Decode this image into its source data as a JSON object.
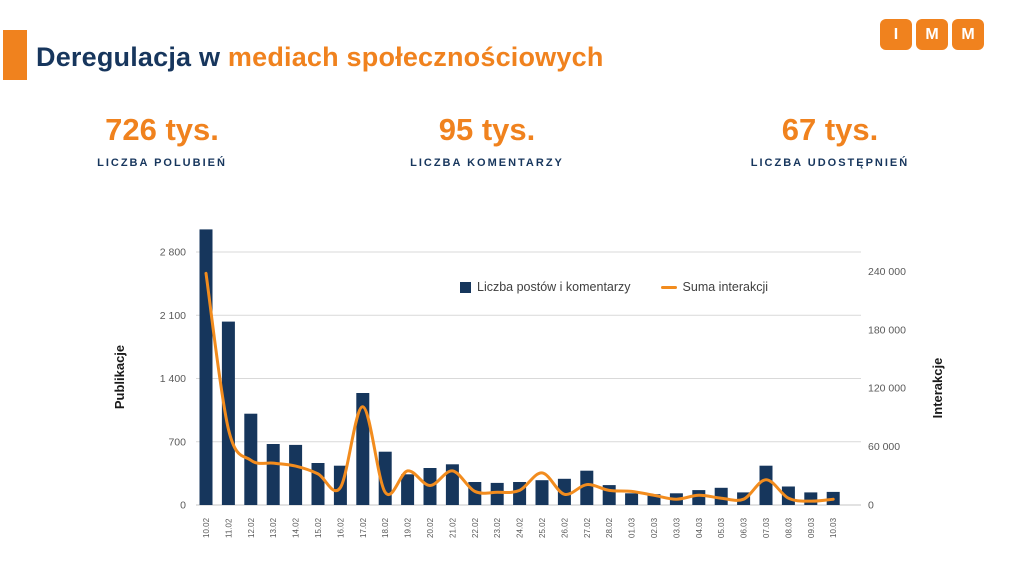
{
  "header": {
    "title_dark": "Deregulacja w ",
    "title_orange": "mediach społecznościowych",
    "logo_letters": [
      "I",
      "M",
      "M"
    ]
  },
  "stats": [
    {
      "value": "726 tys.",
      "label": "LICZBA POLUBIEŃ"
    },
    {
      "value": "95 tys.",
      "label": "LICZBA KOMENTARZY"
    },
    {
      "value": "67 tys.",
      "label": "LICZBA UDOSTĘPNIEŃ"
    }
  ],
  "colors": {
    "navy": "#17365d",
    "orange": "#f0821e",
    "bar": "#16365c",
    "line": "#f28c1e",
    "axis_text": "#595959",
    "grid": "#d9d9d9"
  },
  "chart_data": {
    "type": "bar",
    "categories": [
      "10.02",
      "11.02",
      "12.02",
      "13.02",
      "14.02",
      "15.02",
      "16.02",
      "17.02",
      "18.02",
      "19.02",
      "20.02",
      "21.02",
      "22.02",
      "23.02",
      "24.02",
      "25.02",
      "26.02",
      "27.02",
      "28.02",
      "01.03",
      "02.03",
      "03.03",
      "04.03",
      "05.03",
      "06.03",
      "07.03",
      "08.03",
      "09.03",
      "10.03"
    ],
    "series": [
      {
        "name": "Liczba postów i komentarzy",
        "type": "bar",
        "axis": "left",
        "color": "#16365c",
        "values": [
          3050,
          2030,
          1010,
          675,
          665,
          465,
          435,
          1240,
          590,
          340,
          410,
          450,
          255,
          245,
          255,
          275,
          290,
          380,
          220,
          130,
          120,
          130,
          165,
          190,
          140,
          435,
          205,
          140,
          145
        ]
      },
      {
        "name": "Suma interakcji",
        "type": "line",
        "axis": "right",
        "color": "#f28c1e",
        "values": [
          238000,
          78000,
          46000,
          43000,
          40000,
          32000,
          18000,
          101000,
          13000,
          35000,
          20000,
          35000,
          14000,
          13000,
          15000,
          33000,
          11000,
          21000,
          15000,
          14000,
          10000,
          6000,
          10000,
          7000,
          6000,
          26000,
          7000,
          4000,
          6000
        ]
      }
    ],
    "left_axis": {
      "label": "Publikacje",
      "ticks": [
        0,
        700,
        1400,
        2100,
        2800
      ],
      "max": 3060
    },
    "right_axis": {
      "label": "Interakcje",
      "ticks": [
        0,
        60000,
        120000,
        180000,
        240000
      ],
      "max": 282000
    },
    "grid": true,
    "legend_position": "top-inside"
  }
}
